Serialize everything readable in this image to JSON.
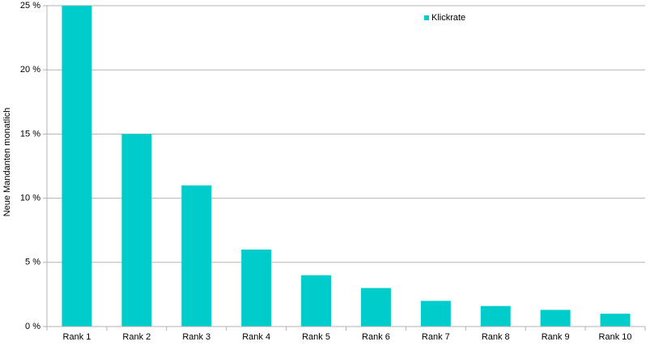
{
  "chart_data": {
    "type": "bar",
    "y_label": "Neue Mandanten monatlich",
    "categories": [
      "Rank 1",
      "Rank 2",
      "Rank 3",
      "Rank 4",
      "Rank 5",
      "Rank 6",
      "Rank 7",
      "Rank 8",
      "Rank 9",
      "Rank 10"
    ],
    "series": [
      {
        "name": "Klickrate",
        "color": "#00cccc",
        "values": [
          25,
          15,
          11,
          6,
          4,
          3,
          2,
          1.6,
          1.3,
          1.0
        ]
      }
    ],
    "ylim": [
      0,
      25
    ],
    "yticks": [
      {
        "value": 0,
        "label": "0 %"
      },
      {
        "value": 5,
        "label": "5 %"
      },
      {
        "value": 10,
        "label": "10 %"
      },
      {
        "value": 15,
        "label": "15 %"
      },
      {
        "value": 20,
        "label": "20 %"
      },
      {
        "value": 25,
        "label": "25 %"
      }
    ],
    "grid": true,
    "legend": "top-right"
  }
}
